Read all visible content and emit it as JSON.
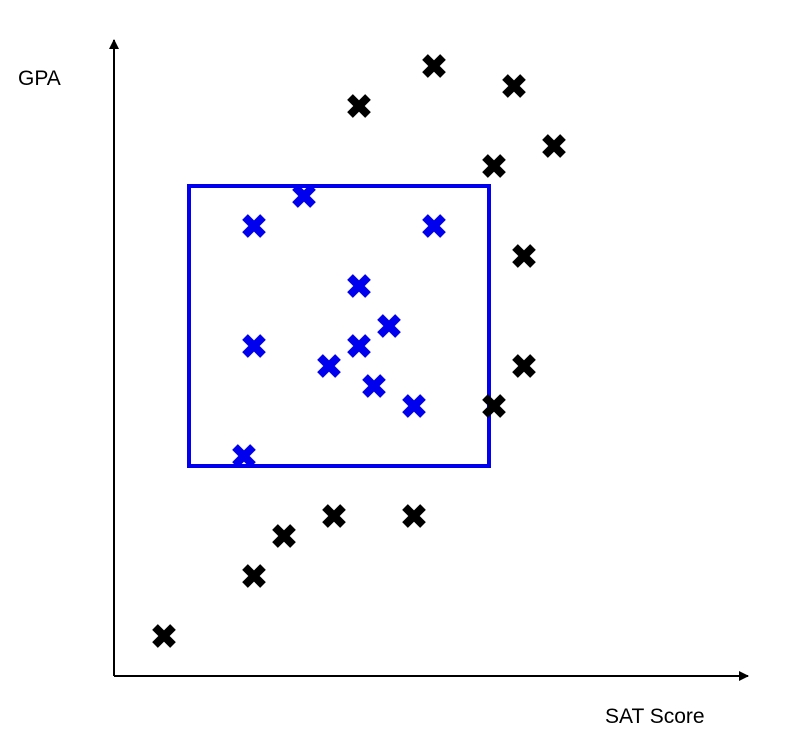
{
  "chart_data": {
    "type": "scatter",
    "xlabel": "SAT Score",
    "ylabel": "GPA",
    "marker": "x",
    "grid": false,
    "selection_box": {
      "x_range": [
        7.5,
        37.5
      ],
      "y_range": [
        21,
        49
      ],
      "color": "#0000ee"
    },
    "series": [
      {
        "color": "#000000",
        "points": [
          {
            "x": 5,
            "y": 4
          },
          {
            "x": 14,
            "y": 10
          },
          {
            "x": 17,
            "y": 14
          },
          {
            "x": 22,
            "y": 16
          },
          {
            "x": 30,
            "y": 16
          },
          {
            "x": 38,
            "y": 27
          },
          {
            "x": 41,
            "y": 31
          },
          {
            "x": 41,
            "y": 42
          },
          {
            "x": 38,
            "y": 51
          },
          {
            "x": 44,
            "y": 53
          },
          {
            "x": 40,
            "y": 59
          },
          {
            "x": 32,
            "y": 61
          },
          {
            "x": 24.5,
            "y": 57
          }
        ]
      },
      {
        "color": "#0000ee",
        "points": [
          {
            "x": 13,
            "y": 22
          },
          {
            "x": 14,
            "y": 33
          },
          {
            "x": 14,
            "y": 45
          },
          {
            "x": 19,
            "y": 48
          },
          {
            "x": 21.5,
            "y": 31
          },
          {
            "x": 24.5,
            "y": 33
          },
          {
            "x": 24.5,
            "y": 39
          },
          {
            "x": 26,
            "y": 29
          },
          {
            "x": 27.5,
            "y": 35
          },
          {
            "x": 30,
            "y": 27
          },
          {
            "x": 32,
            "y": 45
          }
        ]
      }
    ]
  }
}
